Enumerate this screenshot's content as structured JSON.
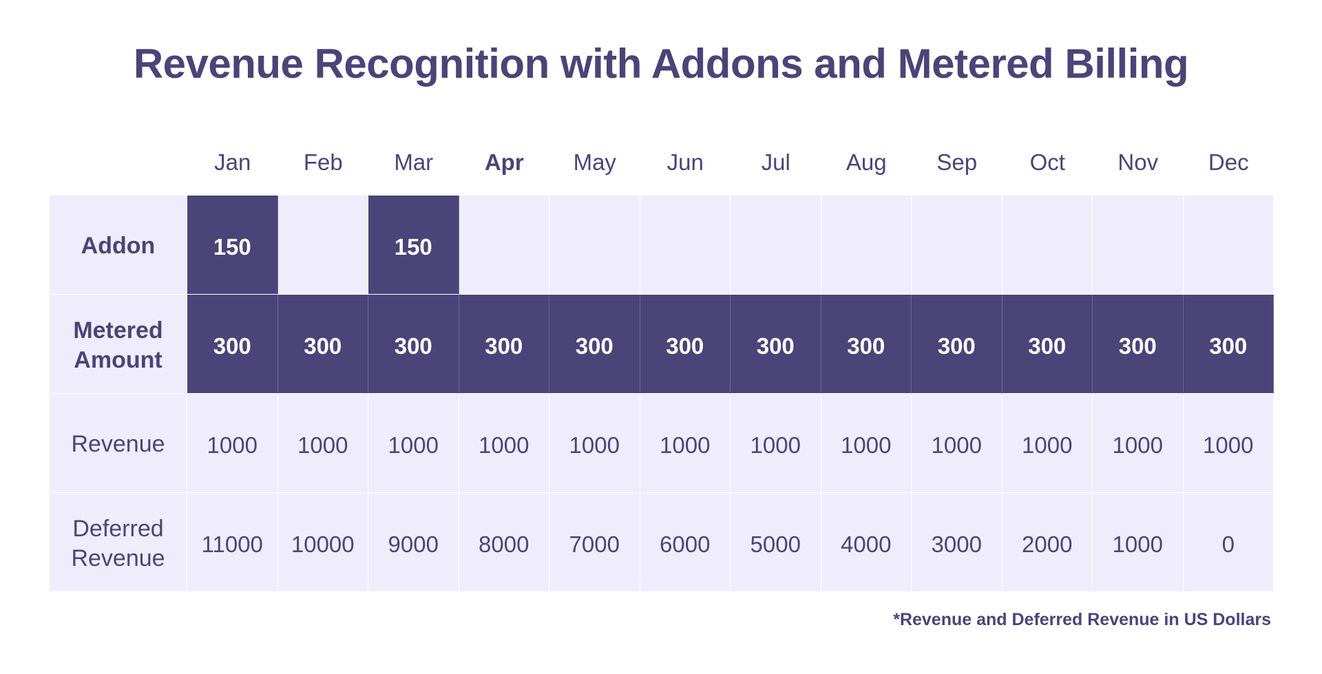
{
  "title": "Revenue Recognition with Addons and Metered Billing",
  "footnote": "*Revenue and Deferred Revenue in US Dollars",
  "colors": {
    "dark_cell": "#4a4478",
    "light_cell": "#efedfb",
    "text": "#4a4478"
  },
  "chart_data": {
    "type": "table",
    "title": "Revenue Recognition with Addons and Metered Billing",
    "columns": [
      "Jan",
      "Feb",
      "Mar",
      "Apr",
      "May",
      "Jun",
      "Jul",
      "Aug",
      "Sep",
      "Oct",
      "Nov",
      "Dec"
    ],
    "highlighted_column": "Apr",
    "rows": [
      {
        "label": "Addon",
        "label_bold": true,
        "values": [
          "150",
          "",
          "150",
          "",
          "",
          "",
          "",
          "",
          "",
          "",
          "",
          ""
        ],
        "highlight": [
          true,
          false,
          true,
          false,
          false,
          false,
          false,
          false,
          false,
          false,
          false,
          false
        ]
      },
      {
        "label": "Metered Amount",
        "label_bold": true,
        "values": [
          "300",
          "300",
          "300",
          "300",
          "300",
          "300",
          "300",
          "300",
          "300",
          "300",
          "300",
          "300"
        ],
        "highlight": [
          true,
          true,
          true,
          true,
          true,
          true,
          true,
          true,
          true,
          true,
          true,
          true
        ]
      },
      {
        "label": "Revenue",
        "label_bold": false,
        "values": [
          "1000",
          "1000",
          "1000",
          "1000",
          "1000",
          "1000",
          "1000",
          "1000",
          "1000",
          "1000",
          "1000",
          "1000"
        ],
        "highlight": [
          false,
          false,
          false,
          false,
          false,
          false,
          false,
          false,
          false,
          false,
          false,
          false
        ]
      },
      {
        "label": "Deferred Revenue",
        "label_bold": false,
        "values": [
          "11000",
          "10000",
          "9000",
          "8000",
          "7000",
          "6000",
          "5000",
          "4000",
          "3000",
          "2000",
          "1000",
          "0"
        ],
        "highlight": [
          false,
          false,
          false,
          false,
          false,
          false,
          false,
          false,
          false,
          false,
          false,
          false
        ]
      }
    ]
  }
}
